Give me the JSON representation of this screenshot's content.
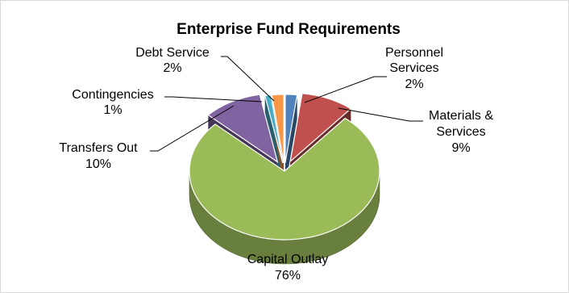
{
  "chart_data": {
    "type": "pie",
    "title": "Enterprise Fund Requirements",
    "style": "3d-exploded",
    "slices": [
      {
        "label_lines": [
          "Personnel",
          "Services"
        ],
        "pct_label": "2%",
        "value": 2,
        "color": "#4f81bd"
      },
      {
        "label_lines": [
          "Materials &",
          "Services"
        ],
        "pct_label": "9%",
        "value": 9,
        "color": "#c0504d"
      },
      {
        "label_lines": [
          "Capital Outlay"
        ],
        "pct_label": "76%",
        "value": 76,
        "color": "#9bbb59"
      },
      {
        "label_lines": [
          "Transfers Out"
        ],
        "pct_label": "10%",
        "value": 10,
        "color": "#8064a2"
      },
      {
        "label_lines": [
          "Contingencies"
        ],
        "pct_label": "1%",
        "value": 1,
        "color": "#4bacc6"
      },
      {
        "label_lines": [
          "Debt Service"
        ],
        "pct_label": "2%",
        "value": 2,
        "color": "#f79646"
      }
    ]
  }
}
